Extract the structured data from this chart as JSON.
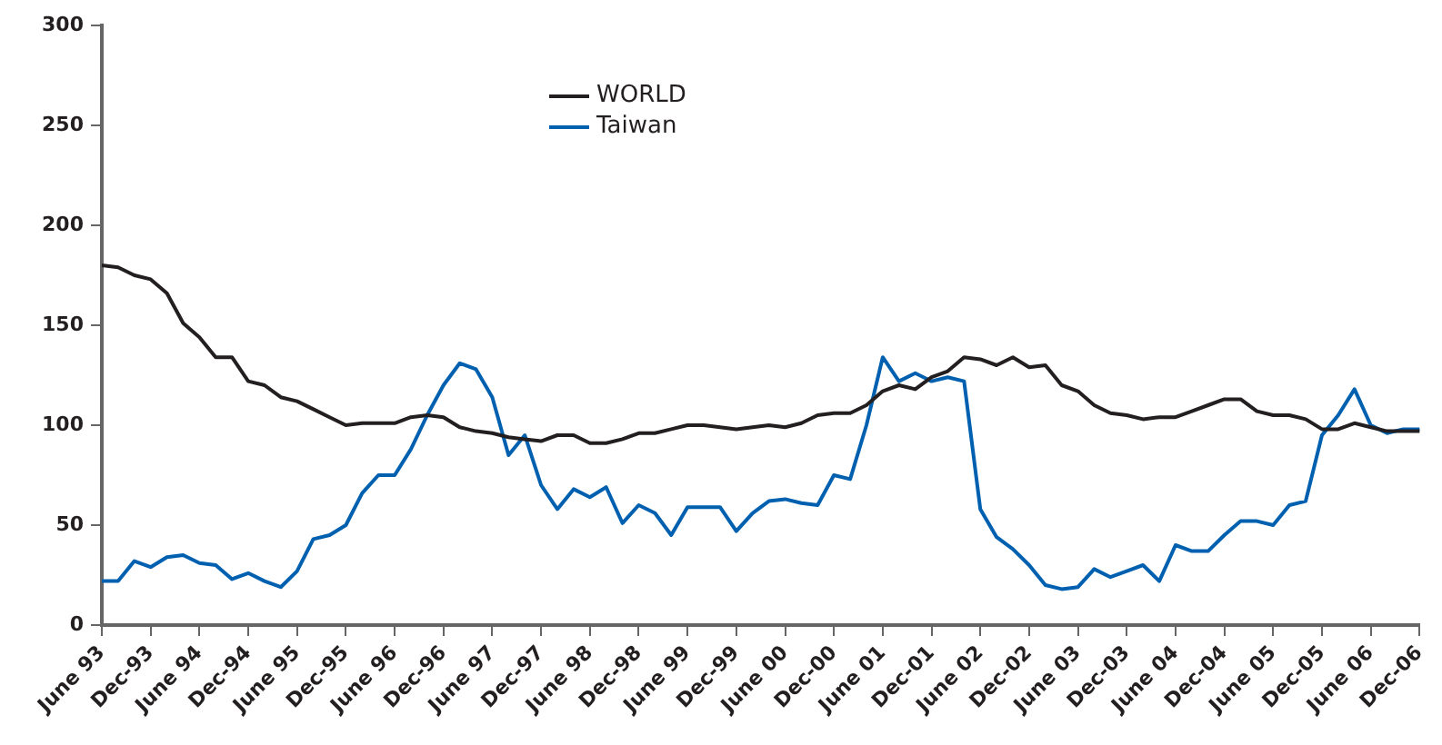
{
  "chart_data": {
    "type": "line",
    "categories": [
      "June 93",
      null,
      null,
      "Dec-93",
      null,
      null,
      "June 94",
      null,
      null,
      "Dec-94",
      null,
      null,
      "June 95",
      null,
      null,
      "Dec-95",
      null,
      null,
      "June 96",
      null,
      null,
      "Dec-96",
      null,
      null,
      "June 97",
      null,
      null,
      "Dec-97",
      null,
      null,
      "June 98",
      null,
      null,
      "Dec-98",
      null,
      null,
      "June 99",
      null,
      null,
      "Dec-99",
      null,
      null,
      "June 00",
      null,
      null,
      "Dec-00",
      null,
      null,
      "June 01",
      null,
      null,
      "Dec-01",
      null,
      null,
      "June 02",
      null,
      null,
      "Dec-02",
      null,
      null,
      "June 03",
      null,
      null,
      "Dec-03",
      null,
      null,
      "June 04",
      null,
      null,
      "Dec-04",
      null,
      null,
      "June 05",
      null,
      null,
      "Dec-05",
      null,
      null,
      "June 06",
      null,
      null,
      "Dec-06"
    ],
    "series": [
      {
        "name": "WORLD",
        "color": "#231f20",
        "values": [
          180,
          179,
          175,
          173,
          166,
          151,
          144,
          134,
          134,
          122,
          120,
          114,
          112,
          108,
          104,
          100,
          101,
          101,
          101,
          104,
          105,
          104,
          99,
          97,
          96,
          94,
          93,
          92,
          95,
          95,
          91,
          91,
          93,
          96,
          96,
          98,
          100,
          100,
          99,
          98,
          99,
          100,
          99,
          101,
          105,
          106,
          106,
          110,
          117,
          120,
          118,
          124,
          127,
          134,
          133,
          130,
          134,
          129,
          130,
          120,
          117,
          110,
          106,
          105,
          103,
          104,
          104,
          107,
          110,
          113,
          113,
          107,
          105,
          105,
          103,
          98,
          98,
          101,
          99,
          97,
          97,
          97
        ]
      },
      {
        "name": "Taiwan",
        "color": "#0060b0",
        "values": [
          22,
          22,
          32,
          29,
          34,
          35,
          31,
          30,
          23,
          26,
          22,
          19,
          27,
          43,
          45,
          50,
          66,
          75,
          75,
          88,
          105,
          120,
          131,
          128,
          114,
          85,
          95,
          70,
          58,
          68,
          64,
          69,
          51,
          60,
          56,
          45,
          59,
          59,
          59,
          47,
          56,
          62,
          63,
          61,
          60,
          75,
          73,
          100,
          134,
          122,
          126,
          122,
          124,
          122,
          58,
          44,
          38,
          30,
          20,
          18,
          19,
          28,
          24,
          27,
          30,
          22,
          40,
          37,
          37,
          45,
          52,
          52,
          50,
          60,
          62,
          95,
          105,
          118,
          100,
          96,
          98,
          98
        ]
      }
    ],
    "ylim": [
      0,
      300
    ],
    "yticks": [
      0,
      50,
      100,
      150,
      200,
      250,
      300
    ],
    "grid": false,
    "legend": "top",
    "marker": "none",
    "line_style": "solid"
  }
}
